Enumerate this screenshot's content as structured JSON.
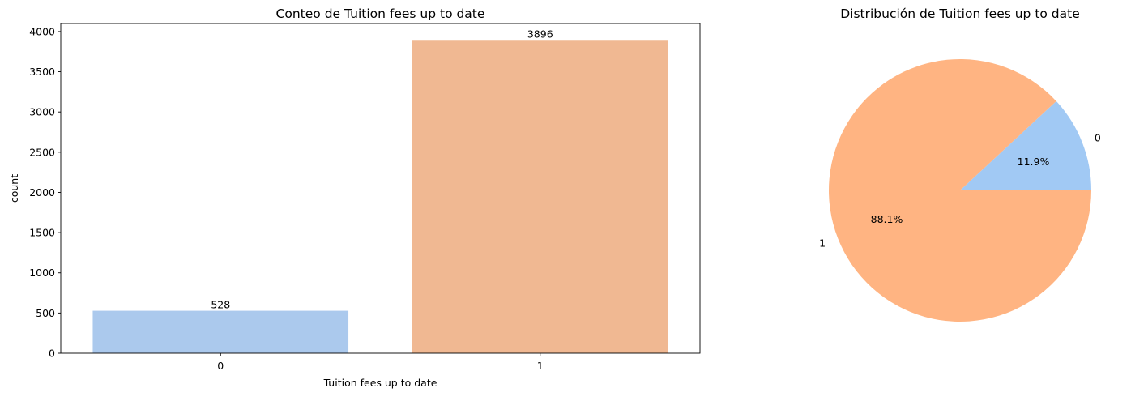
{
  "chart_data": [
    {
      "type": "bar",
      "title": "Conteo de Tuition fees up to date",
      "xlabel": "Tuition fees up to date",
      "ylabel": "count",
      "categories": [
        "0",
        "1"
      ],
      "values": [
        528,
        3896
      ],
      "data_labels": [
        "528",
        "3896"
      ],
      "ylim": [
        0,
        4100
      ],
      "yticks": [
        0,
        500,
        1000,
        1500,
        2000,
        2500,
        3000,
        3500,
        4000
      ],
      "colors": [
        "#abc9ed",
        "#f0b892"
      ],
      "grid": false,
      "legend": "none"
    },
    {
      "type": "pie",
      "title": "Distribución de Tuition fees up to date",
      "categories": [
        "0",
        "1"
      ],
      "values": [
        11.9,
        88.1
      ],
      "pct_labels": [
        "11.9%",
        "88.1%"
      ],
      "colors": [
        "#a1c9f4",
        "#ffb482"
      ],
      "legend": "none"
    }
  ]
}
